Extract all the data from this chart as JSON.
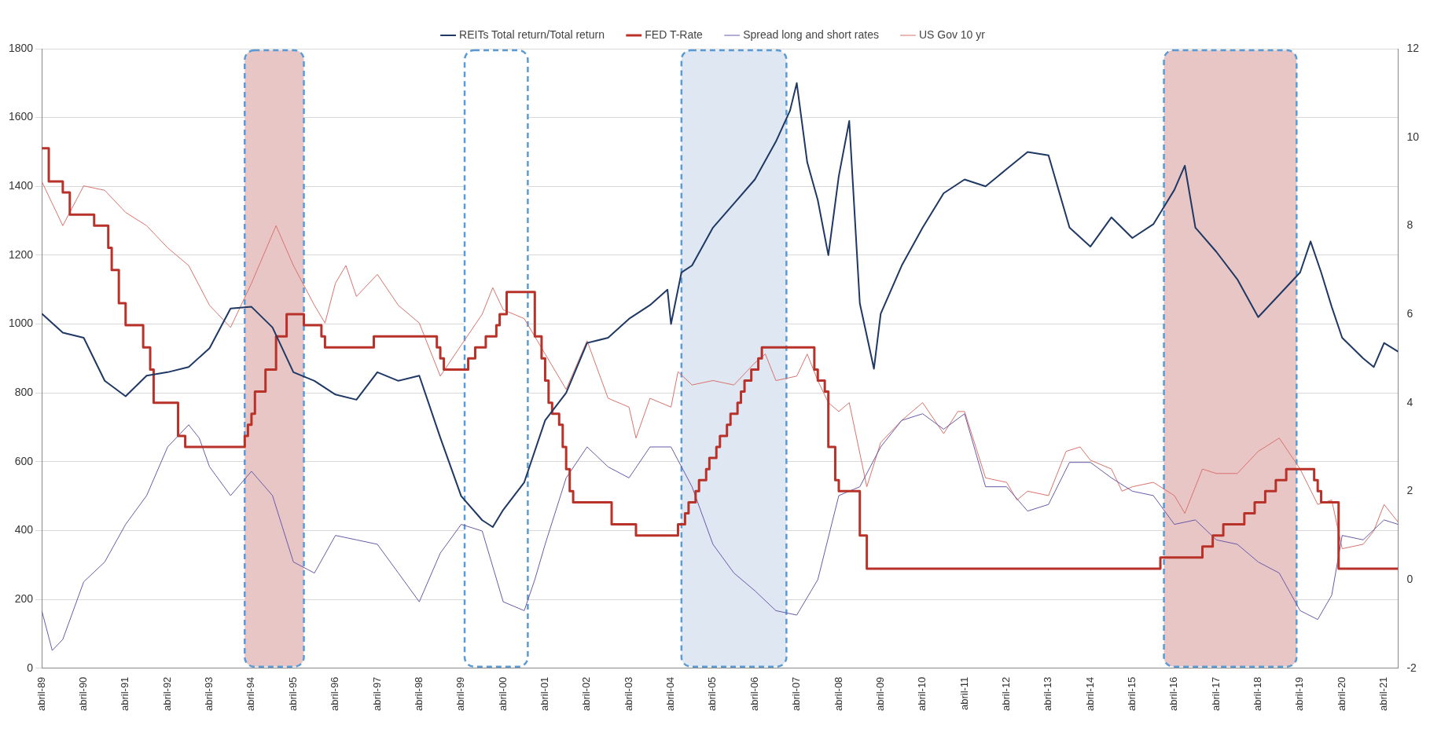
{
  "chart_data": {
    "type": "line",
    "legend": "top",
    "grid": "y",
    "xlim": [
      "1989-04",
      "2021-08"
    ],
    "xticks": [
      {
        "value": "1989-04",
        "label": "abril-89"
      },
      {
        "value": "1990-04",
        "label": "abril-90"
      },
      {
        "value": "1991-04",
        "label": "abril-91"
      },
      {
        "value": "1992-04",
        "label": "abril-92"
      },
      {
        "value": "1993-04",
        "label": "abril-93"
      },
      {
        "value": "1994-04",
        "label": "abril-94"
      },
      {
        "value": "1995-04",
        "label": "abril-95"
      },
      {
        "value": "1996-04",
        "label": "abril-96"
      },
      {
        "value": "1997-04",
        "label": "abril-97"
      },
      {
        "value": "1998-04",
        "label": "abril-98"
      },
      {
        "value": "1999-04",
        "label": "abril-99"
      },
      {
        "value": "2000-04",
        "label": "abril-00"
      },
      {
        "value": "2001-04",
        "label": "abril-01"
      },
      {
        "value": "2002-04",
        "label": "abril-02"
      },
      {
        "value": "2003-04",
        "label": "abril-03"
      },
      {
        "value": "2004-04",
        "label": "abril-04"
      },
      {
        "value": "2005-04",
        "label": "abril-05"
      },
      {
        "value": "2006-04",
        "label": "abril-06"
      },
      {
        "value": "2007-04",
        "label": "abril-07"
      },
      {
        "value": "2008-04",
        "label": "abril-08"
      },
      {
        "value": "2009-04",
        "label": "abril-09"
      },
      {
        "value": "2010-04",
        "label": "abril-10"
      },
      {
        "value": "2011-04",
        "label": "abril-11"
      },
      {
        "value": "2012-04",
        "label": "abril-12"
      },
      {
        "value": "2013-04",
        "label": "abril-13"
      },
      {
        "value": "2014-04",
        "label": "abril-14"
      },
      {
        "value": "2015-04",
        "label": "abril-15"
      },
      {
        "value": "2016-04",
        "label": "abril-16"
      },
      {
        "value": "2017-04",
        "label": "abril-17"
      },
      {
        "value": "2018-04",
        "label": "abril-18"
      },
      {
        "value": "2019-04",
        "label": "abril-19"
      },
      {
        "value": "2020-04",
        "label": "abril-20"
      },
      {
        "value": "2021-04",
        "label": "abril-21"
      }
    ],
    "ylim": [
      0,
      1800
    ],
    "yticks": [
      0,
      200,
      400,
      600,
      800,
      1000,
      1200,
      1400,
      1600,
      1800
    ],
    "y2lim": [
      -2,
      12
    ],
    "y2ticks": [
      -2,
      0,
      2,
      4,
      6,
      8,
      10,
      12
    ],
    "bands": [
      {
        "axis": "x",
        "from": "1994-02",
        "to": "1995-07",
        "color": "#e8c6c6"
      },
      {
        "axis": "x",
        "from": "1999-05",
        "to": "2000-11",
        "color": "#ffffff"
      },
      {
        "axis": "x",
        "from": "2004-07",
        "to": "2007-01",
        "color": "#dfe7f3"
      },
      {
        "axis": "x",
        "from": "2016-01",
        "to": "2019-03",
        "color": "#e8c6c6"
      }
    ],
    "series": [
      {
        "name": "REITs Total return/Total return",
        "type": "line",
        "color": "#1f3864",
        "x": [
          "1989-04",
          "1989-10",
          "1990-04",
          "1990-10",
          "1991-04",
          "1991-10",
          "1992-04",
          "1992-10",
          "1993-04",
          "1993-10",
          "1994-04",
          "1994-10",
          "1995-04",
          "1995-10",
          "1996-04",
          "1996-10",
          "1997-04",
          "1997-10",
          "1998-04",
          "1998-10",
          "1999-04",
          "1999-10",
          "2000-01",
          "2000-04",
          "2000-10",
          "2001-04",
          "2001-10",
          "2002-04",
          "2002-10",
          "2003-04",
          "2003-10",
          "2004-03",
          "2004-04",
          "2004-07",
          "2004-10",
          "2005-04",
          "2005-10",
          "2006-04",
          "2006-10",
          "2007-02",
          "2007-04",
          "2007-07",
          "2007-10",
          "2008-01",
          "2008-04",
          "2008-07",
          "2008-10",
          "2009-02",
          "2009-04",
          "2009-10",
          "2010-04",
          "2010-10",
          "2011-04",
          "2011-10",
          "2012-04",
          "2012-10",
          "2013-04",
          "2013-10",
          "2014-04",
          "2014-10",
          "2015-04",
          "2015-10",
          "2016-04",
          "2016-07",
          "2016-10",
          "2017-04",
          "2017-10",
          "2018-04",
          "2018-10",
          "2019-04",
          "2019-07",
          "2019-10",
          "2020-01",
          "2020-04",
          "2020-10",
          "2021-01",
          "2021-04",
          "2021-08"
        ],
        "values": [
          1030,
          975,
          960,
          835,
          790,
          850,
          860,
          875,
          930,
          1045,
          1050,
          990,
          860,
          835,
          795,
          780,
          860,
          835,
          850,
          670,
          500,
          430,
          410,
          460,
          540,
          720,
          800,
          945,
          960,
          1015,
          1055,
          1100,
          1000,
          1150,
          1170,
          1280,
          1350,
          1420,
          1530,
          1620,
          1700,
          1470,
          1360,
          1200,
          1430,
          1590,
          1060,
          870,
          1030,
          1170,
          1280,
          1380,
          1420,
          1400,
          1450,
          1500,
          1490,
          1280,
          1225,
          1310,
          1250,
          1290,
          1390,
          1460,
          1280,
          1210,
          1130,
          1020,
          1085,
          1150,
          1240,
          1150,
          1050,
          960,
          900,
          875,
          945,
          920
        ]
      },
      {
        "name": "FED T-Rate",
        "type": "step",
        "axis": "y2",
        "color": "#b8322a",
        "x": [
          "1989-04",
          "1989-06",
          "1989-10",
          "1989-12",
          "1990-07",
          "1990-11",
          "1990-12",
          "1991-02",
          "1991-04",
          "1991-09",
          "1991-11",
          "1991-12",
          "1992-07",
          "1992-09",
          "1994-02",
          "1994-03",
          "1994-04",
          "1994-05",
          "1994-08",
          "1994-11",
          "1995-02",
          "1995-07",
          "1995-12",
          "1996-01",
          "1997-03",
          "1998-09",
          "1998-10",
          "1998-11",
          "1999-06",
          "1999-08",
          "1999-11",
          "2000-02",
          "2000-03",
          "2000-05",
          "2001-01",
          "2001-03",
          "2001-04",
          "2001-05",
          "2001-06",
          "2001-08",
          "2001-09",
          "2001-10",
          "2001-11",
          "2001-12",
          "2002-11",
          "2003-06",
          "2004-06",
          "2004-08",
          "2004-09",
          "2004-11",
          "2004-12",
          "2005-02",
          "2005-03",
          "2005-05",
          "2005-06",
          "2005-08",
          "2005-09",
          "2005-11",
          "2005-12",
          "2006-01",
          "2006-03",
          "2006-05",
          "2006-06",
          "2007-09",
          "2007-10",
          "2007-12",
          "2008-01",
          "2008-03",
          "2008-04",
          "2008-10",
          "2008-12",
          "2015-12",
          "2016-12",
          "2017-03",
          "2017-06",
          "2017-12",
          "2018-03",
          "2018-06",
          "2018-09",
          "2018-12",
          "2019-08",
          "2019-09",
          "2019-10",
          "2020-03",
          "2021-08"
        ],
        "values": [
          9.75,
          9.0,
          8.75,
          8.25,
          8.0,
          7.5,
          7.0,
          6.25,
          5.75,
          5.25,
          4.75,
          4.0,
          3.25,
          3.0,
          3.25,
          3.5,
          3.75,
          4.25,
          4.75,
          5.5,
          6.0,
          5.75,
          5.5,
          5.25,
          5.5,
          5.25,
          5.0,
          4.75,
          5.0,
          5.25,
          5.5,
          5.75,
          6.0,
          6.5,
          5.5,
          5.0,
          4.5,
          4.0,
          3.75,
          3.5,
          3.0,
          2.5,
          2.0,
          1.75,
          1.25,
          1.0,
          1.25,
          1.5,
          1.75,
          2.0,
          2.25,
          2.5,
          2.75,
          3.0,
          3.25,
          3.5,
          3.75,
          4.0,
          4.25,
          4.5,
          4.75,
          5.0,
          5.25,
          4.75,
          4.5,
          4.25,
          3.0,
          2.25,
          2.0,
          1.0,
          0.25,
          0.5,
          0.75,
          1.0,
          1.25,
          1.5,
          1.75,
          2.0,
          2.25,
          2.5,
          2.25,
          2.0,
          1.75,
          0.25,
          0.25
        ]
      },
      {
        "name": "Spread long and short rates",
        "type": "line",
        "axis": "y2",
        "color": "#6a5aa8",
        "x": [
          "1989-04",
          "1989-07",
          "1989-10",
          "1990-04",
          "1990-10",
          "1991-04",
          "1991-10",
          "1992-04",
          "1992-10",
          "1993-01",
          "1993-04",
          "1993-10",
          "1994-04",
          "1994-10",
          "1995-04",
          "1995-10",
          "1996-04",
          "1996-10",
          "1997-04",
          "1997-10",
          "1998-04",
          "1998-10",
          "1999-04",
          "1999-10",
          "2000-04",
          "2000-10",
          "2001-01",
          "2001-04",
          "2001-10",
          "2002-04",
          "2002-10",
          "2003-04",
          "2003-10",
          "2004-04",
          "2004-10",
          "2005-04",
          "2005-10",
          "2006-04",
          "2006-10",
          "2007-04",
          "2007-10",
          "2008-04",
          "2008-10",
          "2009-04",
          "2009-10",
          "2010-04",
          "2010-10",
          "2011-04",
          "2011-10",
          "2012-04",
          "2012-10",
          "2013-04",
          "2013-10",
          "2014-04",
          "2014-10",
          "2015-04",
          "2015-10",
          "2016-04",
          "2016-10",
          "2017-04",
          "2017-10",
          "2018-04",
          "2018-10",
          "2019-04",
          "2019-09",
          "2020-01",
          "2020-04",
          "2020-10",
          "2021-04",
          "2021-08"
        ],
        "values": [
          -0.7,
          -1.6,
          -1.35,
          -0.05,
          0.4,
          1.25,
          1.9,
          3.0,
          3.5,
          3.2,
          2.55,
          1.9,
          2.45,
          1.9,
          0.4,
          0.15,
          1.0,
          0.9,
          0.8,
          0.15,
          -0.5,
          0.6,
          1.25,
          1.1,
          -0.5,
          -0.7,
          0.0,
          0.8,
          2.3,
          3.0,
          2.55,
          2.3,
          3.0,
          3.0,
          2.1,
          0.8,
          0.15,
          -0.25,
          -0.7,
          -0.8,
          0.0,
          1.9,
          2.1,
          3.0,
          3.6,
          3.75,
          3.4,
          3.75,
          2.1,
          2.1,
          1.55,
          1.7,
          2.65,
          2.65,
          2.3,
          2.0,
          1.9,
          1.25,
          1.35,
          0.9,
          0.8,
          0.4,
          0.15,
          -0.7,
          -0.9,
          -0.35,
          1.0,
          0.9,
          1.35,
          1.25
        ]
      },
      {
        "name": "US Gov 10 yr",
        "type": "line",
        "axis": "y2",
        "color": "#d9736d",
        "x": [
          "1989-04",
          "1989-10",
          "1990-04",
          "1990-10",
          "1991-04",
          "1991-10",
          "1992-04",
          "1992-10",
          "1993-04",
          "1993-10",
          "1994-04",
          "1994-11",
          "1995-04",
          "1995-10",
          "1996-01",
          "1996-04",
          "1996-07",
          "1996-10",
          "1997-04",
          "1997-10",
          "1998-04",
          "1998-10",
          "1999-04",
          "1999-10",
          "2000-01",
          "2000-04",
          "2000-10",
          "2001-04",
          "2001-10",
          "2002-04",
          "2002-10",
          "2003-04",
          "2003-06",
          "2003-10",
          "2004-04",
          "2004-06",
          "2004-10",
          "2005-04",
          "2005-10",
          "2006-04",
          "2006-07",
          "2006-10",
          "2007-04",
          "2007-07",
          "2007-10",
          "2008-01",
          "2008-04",
          "2008-07",
          "2008-12",
          "2009-04",
          "2009-10",
          "2010-04",
          "2010-10",
          "2011-02",
          "2011-04",
          "2011-10",
          "2012-04",
          "2012-07",
          "2012-10",
          "2013-04",
          "2013-09",
          "2014-01",
          "2014-04",
          "2014-10",
          "2015-01",
          "2015-04",
          "2015-10",
          "2016-04",
          "2016-07",
          "2016-12",
          "2017-04",
          "2017-10",
          "2018-04",
          "2018-10",
          "2019-04",
          "2019-09",
          "2020-01",
          "2020-04",
          "2020-10",
          "2021-01",
          "2021-04",
          "2021-08"
        ],
        "values": [
          9.0,
          8.0,
          8.9,
          8.8,
          8.3,
          8.0,
          7.5,
          7.1,
          6.2,
          5.7,
          6.7,
          8.0,
          7.1,
          6.2,
          5.8,
          6.7,
          7.1,
          6.4,
          6.9,
          6.2,
          5.8,
          4.6,
          5.3,
          6.0,
          6.6,
          6.1,
          5.9,
          5.1,
          4.3,
          5.4,
          4.1,
          3.9,
          3.2,
          4.1,
          3.9,
          4.7,
          4.4,
          4.5,
          4.4,
          4.9,
          5.1,
          4.5,
          4.6,
          5.1,
          4.5,
          4.0,
          3.8,
          4.0,
          2.1,
          3.1,
          3.6,
          4.0,
          3.3,
          3.8,
          3.8,
          2.3,
          2.2,
          1.8,
          2.0,
          1.9,
          2.9,
          3.0,
          2.7,
          2.5,
          2.0,
          2.1,
          2.2,
          1.9,
          1.5,
          2.5,
          2.4,
          2.4,
          2.9,
          3.2,
          2.5,
          1.7,
          1.8,
          0.7,
          0.8,
          1.1,
          1.7,
          1.3
        ]
      }
    ]
  }
}
